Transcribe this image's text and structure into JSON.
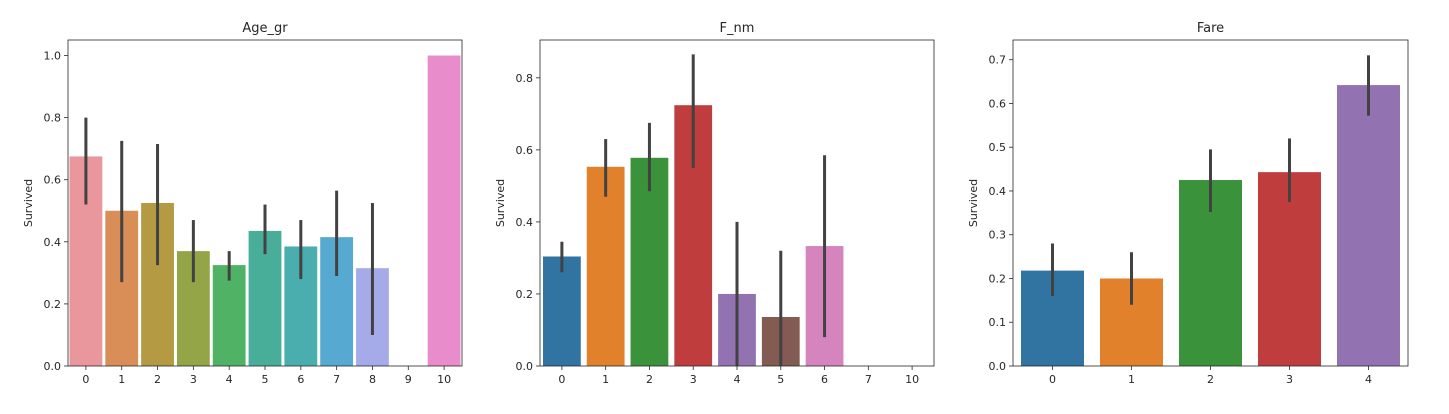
{
  "chart_data": [
    {
      "type": "bar",
      "title": "Age_gr",
      "xlabel": "",
      "ylabel": "Survived",
      "ylim": [
        0,
        1.05
      ],
      "yticks": [
        0.0,
        0.2,
        0.4,
        0.6,
        0.8,
        1.0
      ],
      "ytick_labels": [
        "0.0",
        "0.2",
        "0.4",
        "0.6",
        "0.8",
        "1.0"
      ],
      "categories": [
        "0",
        "1",
        "2",
        "3",
        "4",
        "5",
        "6",
        "7",
        "8",
        "9",
        "10"
      ],
      "values": [
        0.675,
        0.5,
        0.525,
        0.37,
        0.325,
        0.435,
        0.385,
        0.415,
        0.315,
        null,
        1.0
      ],
      "ci_low": [
        0.52,
        0.27,
        0.325,
        0.27,
        0.275,
        0.36,
        0.28,
        0.29,
        0.1,
        null,
        null
      ],
      "ci_high": [
        0.8,
        0.725,
        0.715,
        0.47,
        0.37,
        0.52,
        0.47,
        0.565,
        0.525,
        null,
        null
      ],
      "colors": [
        "#e9969c",
        "#da8e57",
        "#b49a43",
        "#93a547",
        "#4fb265",
        "#49ae99",
        "#4aaeaf",
        "#56a9d0",
        "#a5aae8",
        "#e08fdc",
        "#e98ccb"
      ]
    },
    {
      "type": "bar",
      "title": "F_nm",
      "xlabel": "",
      "ylabel": "Survived",
      "ylim": [
        0,
        0.905
      ],
      "yticks": [
        0.0,
        0.2,
        0.4,
        0.6,
        0.8
      ],
      "ytick_labels": [
        "0.0",
        "0.2",
        "0.4",
        "0.6",
        "0.8"
      ],
      "categories": [
        "0",
        "1",
        "2",
        "3",
        "4",
        "5",
        "6",
        "7",
        "10"
      ],
      "values": [
        0.304,
        0.553,
        0.578,
        0.724,
        0.2,
        0.136,
        0.333,
        null,
        null
      ],
      "ci_low": [
        0.26,
        0.47,
        0.485,
        0.55,
        0.0,
        0.0,
        0.08,
        null,
        null
      ],
      "ci_high": [
        0.345,
        0.63,
        0.675,
        0.865,
        0.4,
        0.32,
        0.585,
        null,
        null
      ],
      "colors": [
        "#3174a1",
        "#e1812c",
        "#3a923a",
        "#c03d3e",
        "#9372b2",
        "#845b53",
        "#d684bd",
        "#7f7f7f",
        "#a9aa35"
      ]
    },
    {
      "type": "bar",
      "title": "Fare",
      "xlabel": "",
      "ylabel": "Survived",
      "ylim": [
        0,
        0.745
      ],
      "yticks": [
        0.0,
        0.1,
        0.2,
        0.3,
        0.4,
        0.5,
        0.6,
        0.7
      ],
      "ytick_labels": [
        "0.0",
        "0.1",
        "0.2",
        "0.3",
        "0.4",
        "0.5",
        "0.6",
        "0.7"
      ],
      "categories": [
        "0",
        "1",
        "2",
        "3",
        "4"
      ],
      "values": [
        0.218,
        0.2,
        0.425,
        0.443,
        0.642
      ],
      "ci_low": [
        0.16,
        0.14,
        0.352,
        0.375,
        0.572
      ],
      "ci_high": [
        0.28,
        0.26,
        0.495,
        0.52,
        0.71
      ],
      "colors": [
        "#3174a1",
        "#e1812c",
        "#3a923a",
        "#c03d3e",
        "#9372b2"
      ]
    }
  ]
}
